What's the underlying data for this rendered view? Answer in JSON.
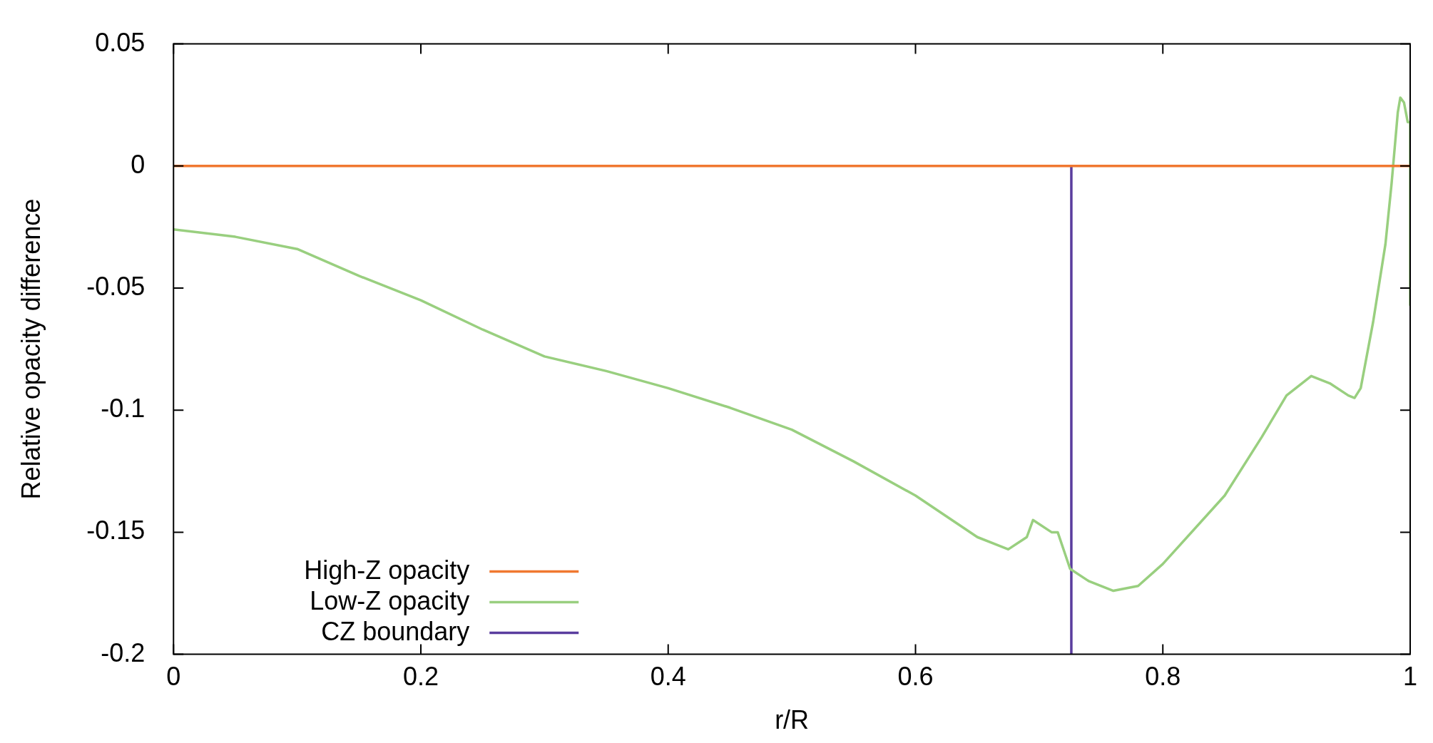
{
  "chart_data": {
    "type": "line",
    "xlabel": "r/R",
    "ylabel": "Relative opacity difference",
    "xlim": [
      0,
      1
    ],
    "ylim": [
      -0.2,
      0.05
    ],
    "xticks": [
      0,
      0.2,
      0.4,
      0.6,
      0.8,
      1
    ],
    "yticks": [
      0.05,
      0,
      -0.05,
      -0.1,
      -0.15,
      -0.2
    ],
    "grid": false,
    "legend": "bottom left",
    "marker": "none",
    "line_style": "solid",
    "series": [
      {
        "name": "High-Z opacity",
        "color": "#f07830",
        "x": [
          0,
          1
        ],
        "values": [
          0,
          0
        ]
      },
      {
        "name": "Low-Z opacity",
        "color": "#99cf7f",
        "x": [
          0,
          0.05,
          0.1,
          0.15,
          0.2,
          0.25,
          0.3,
          0.35,
          0.4,
          0.45,
          0.5,
          0.55,
          0.6,
          0.65,
          0.675,
          0.69,
          0.695,
          0.71,
          0.715,
          0.725,
          0.74,
          0.76,
          0.78,
          0.8,
          0.85,
          0.88,
          0.9,
          0.92,
          0.935,
          0.95,
          0.955,
          0.96,
          0.97,
          0.98,
          0.985,
          0.99,
          0.992,
          0.995,
          0.998,
          1,
          1
        ],
        "values": [
          -0.026,
          -0.029,
          -0.034,
          -0.045,
          -0.055,
          -0.067,
          -0.078,
          -0.084,
          -0.091,
          -0.099,
          -0.108,
          -0.121,
          -0.135,
          -0.152,
          -0.157,
          -0.152,
          -0.145,
          -0.15,
          -0.15,
          -0.165,
          -0.17,
          -0.174,
          -0.172,
          -0.163,
          -0.135,
          -0.111,
          -0.094,
          -0.086,
          -0.089,
          -0.094,
          -0.095,
          -0.091,
          -0.064,
          -0.032,
          -0.007,
          0.022,
          0.028,
          0.026,
          0.018,
          0.018,
          -0.057
        ]
      },
      {
        "name": "CZ boundary",
        "color": "#5a3d9e",
        "x": [
          0.726,
          0.726
        ],
        "values": [
          -0.2,
          0
        ]
      }
    ]
  }
}
